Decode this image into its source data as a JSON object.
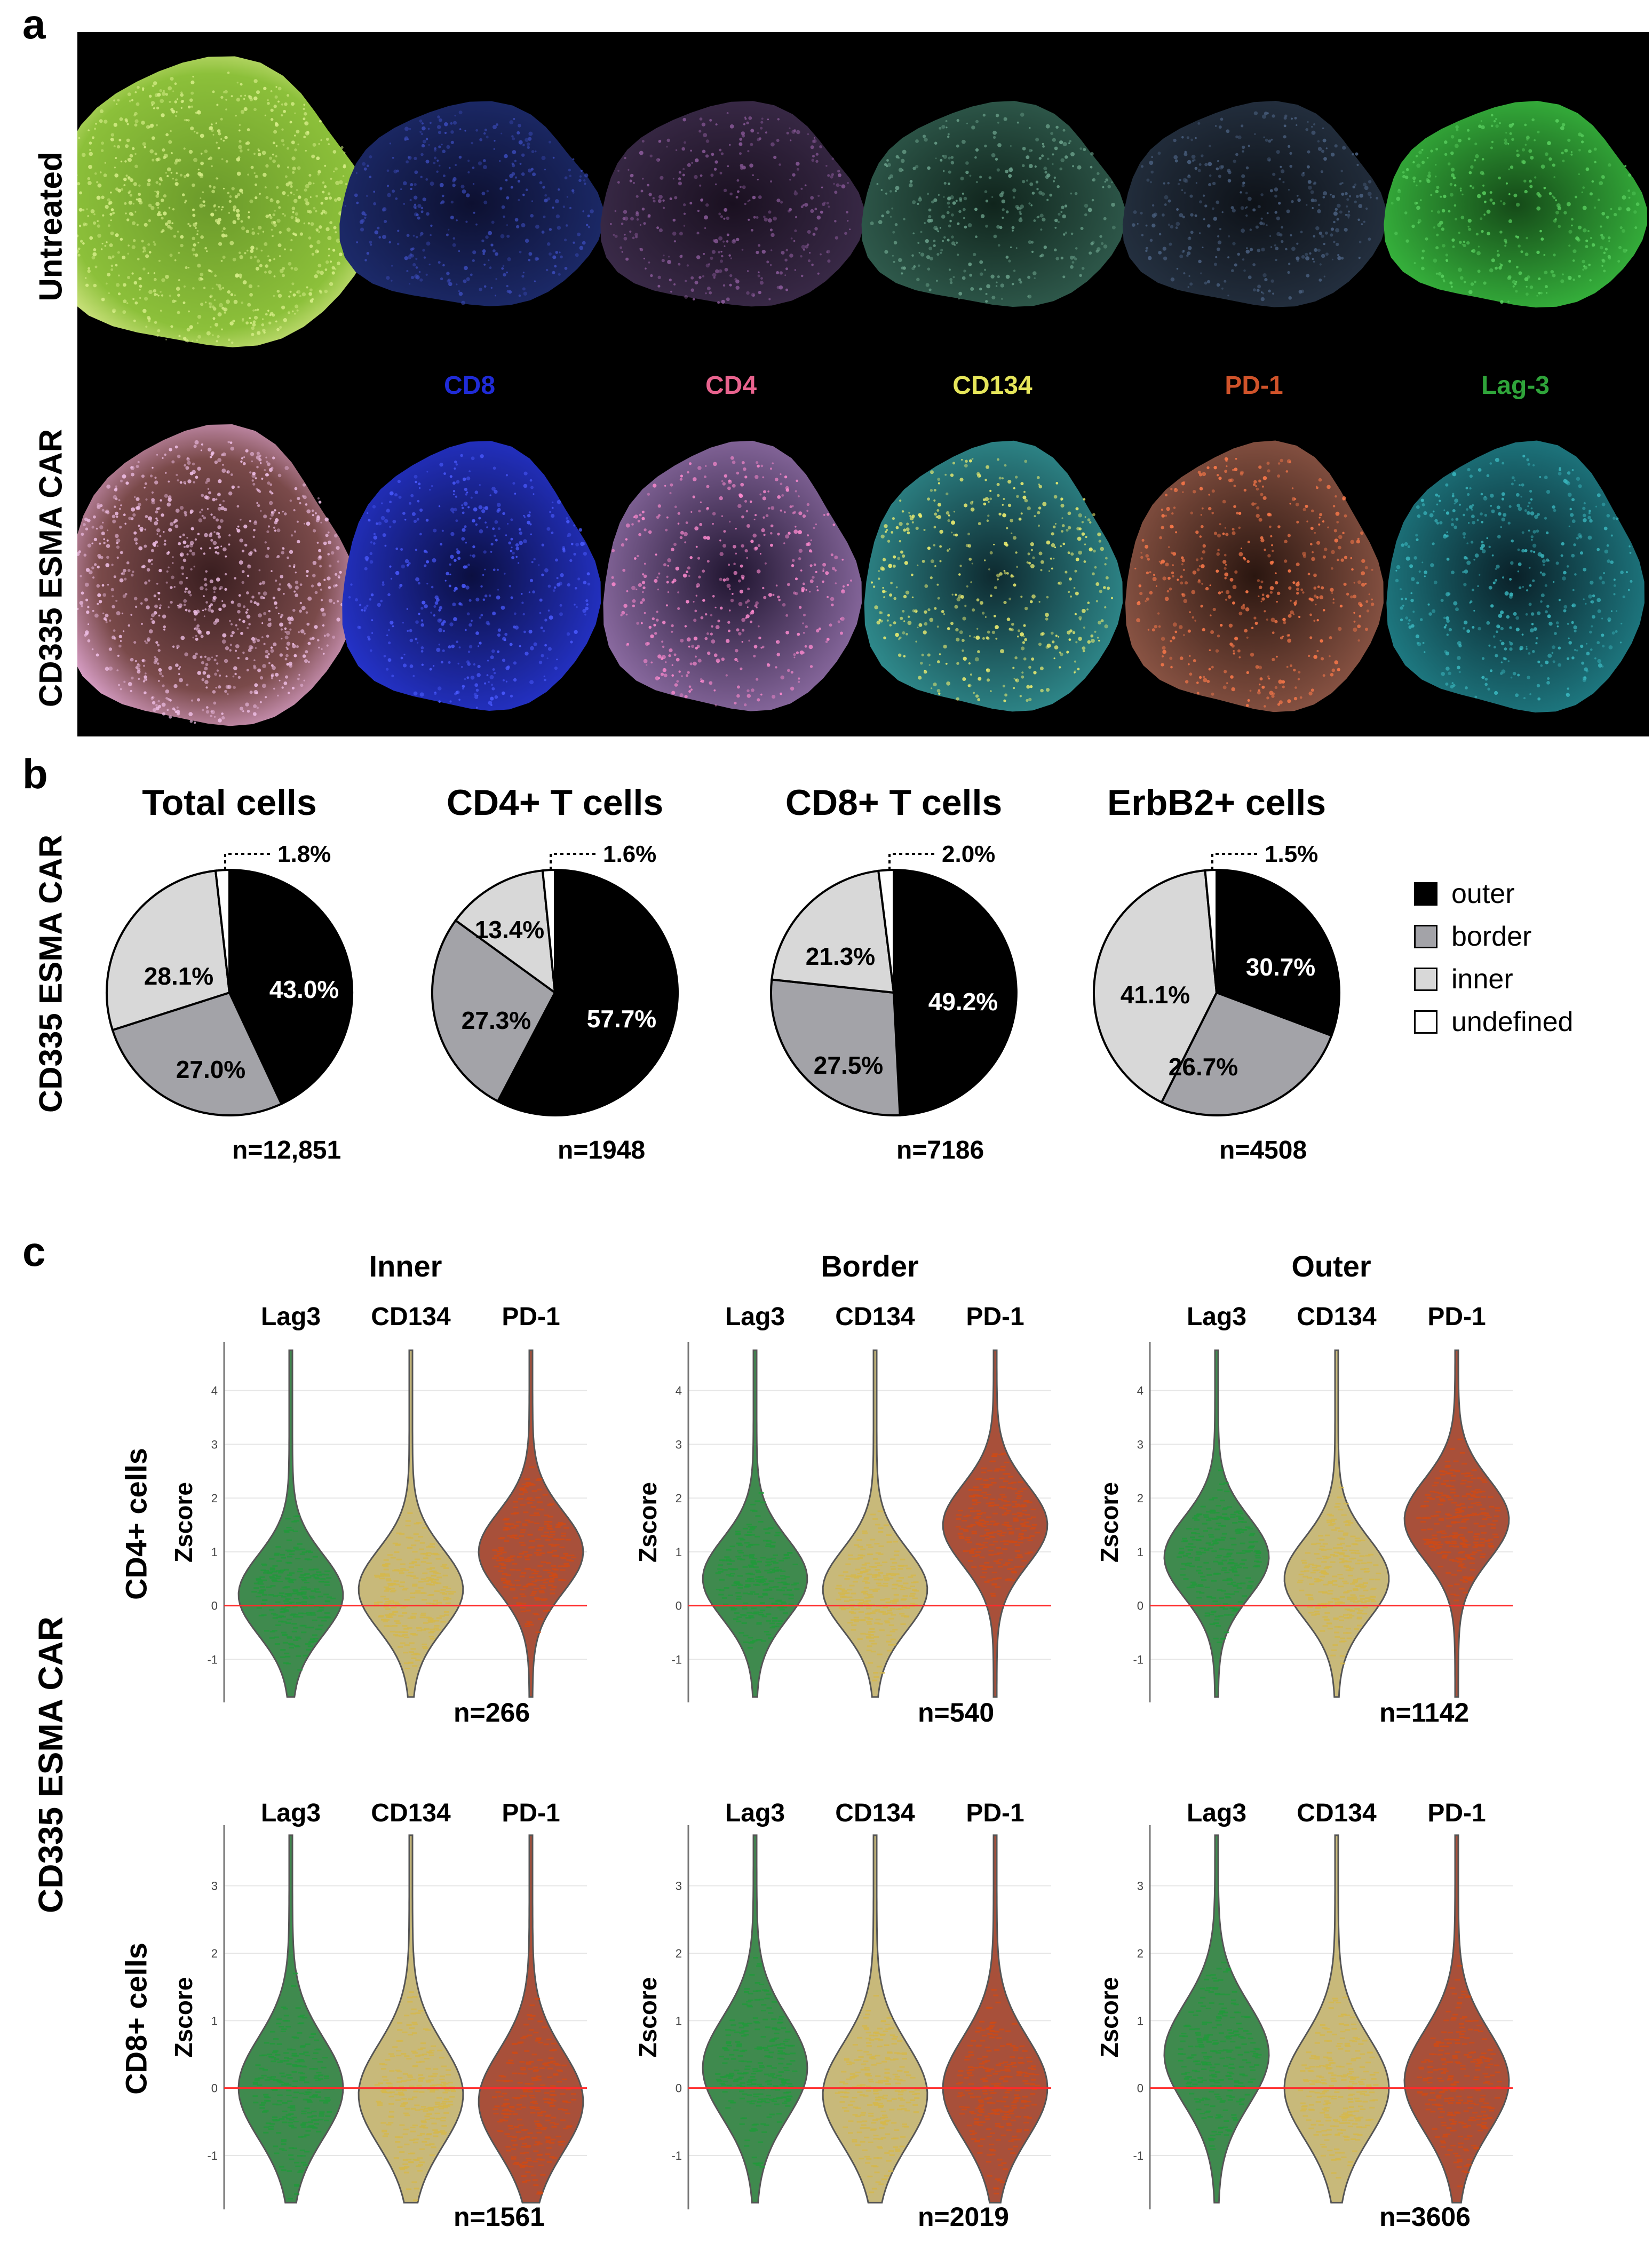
{
  "panels": {
    "a": "a",
    "b": "b",
    "c": "c"
  },
  "panel_a": {
    "row_labels": [
      "Untreated",
      "CD335 ESMA CAR"
    ],
    "markers": [
      {
        "label": "CD8",
        "color": "#1f2bd8"
      },
      {
        "label": "CD4",
        "color": "#e8638e"
      },
      {
        "label": "CD134",
        "color": "#e6e65a"
      },
      {
        "label": "PD-1",
        "color": "#d0532a"
      },
      {
        "label": "Lag-3",
        "color": "#2fa43a"
      }
    ]
  },
  "panel_b": {
    "side_label": "CD335 ESMA CAR",
    "legend": [
      {
        "label": "outer",
        "color": "#000000"
      },
      {
        "label": "border",
        "color": "#a3a3a8"
      },
      {
        "label": "inner",
        "color": "#d8d8d8"
      },
      {
        "label": "undefined",
        "color": "#ffffff"
      }
    ],
    "pies": [
      {
        "title": "Total cells",
        "n": "n=12,851",
        "labels": [
          "43.0%",
          "27.0%",
          "28.1%",
          "1.8%"
        ]
      },
      {
        "title": "CD4+ T cells",
        "n": "n=1948",
        "labels": [
          "57.7%",
          "27.3%",
          "13.4%",
          "1.6%"
        ]
      },
      {
        "title": "CD8+ T cells",
        "n": "n=7186",
        "labels": [
          "49.2%",
          "27.5%",
          "21.3%",
          "2.0%"
        ]
      },
      {
        "title": "ErbB2+ cells",
        "n": "n=4508",
        "labels": [
          "30.7%",
          "26.7%",
          "41.1%",
          "1.5%"
        ]
      }
    ]
  },
  "panel_c": {
    "side_label": "CD335 ESMA CAR",
    "regions": [
      "Inner",
      "Border",
      "Outer"
    ],
    "rows": [
      {
        "label": "CD4+ cells",
        "n": [
          "n=266",
          "n=540",
          "n=1142"
        ]
      },
      {
        "label": "CD8+ cells",
        "n": [
          "n=1561",
          "n=2019",
          "n=3606"
        ]
      }
    ],
    "markers": [
      "Lag3",
      "CD134",
      "PD-1"
    ],
    "ylabel": "Zscore",
    "row1_ticks": [
      "-1",
      "0",
      "1",
      "2",
      "3",
      "4"
    ],
    "row2_ticks": [
      "-1",
      "0",
      "1",
      "2",
      "3"
    ]
  },
  "chart_data": [
    {
      "type": "pie",
      "title": "Total cells",
      "categories": [
        "outer",
        "border",
        "inner",
        "undefined"
      ],
      "values": [
        43.0,
        27.0,
        28.1,
        1.8
      ],
      "n": 12851
    },
    {
      "type": "pie",
      "title": "CD4+ T cells",
      "categories": [
        "outer",
        "border",
        "inner",
        "undefined"
      ],
      "values": [
        57.7,
        27.3,
        13.4,
        1.6
      ],
      "n": 1948
    },
    {
      "type": "pie",
      "title": "CD8+ T cells",
      "categories": [
        "outer",
        "border",
        "inner",
        "undefined"
      ],
      "values": [
        49.2,
        27.5,
        21.3,
        2.0
      ],
      "n": 7186
    },
    {
      "type": "pie",
      "title": "ErbB2+ cells",
      "categories": [
        "outer",
        "border",
        "inner",
        "undefined"
      ],
      "values": [
        30.7,
        26.7,
        41.1,
        1.5
      ],
      "n": 4508
    },
    {
      "type": "violin",
      "title": "CD4+ cells",
      "ylabel": "Zscore",
      "ylim": [
        -1.8,
        4.9
      ],
      "regions": [
        "Inner",
        "Border",
        "Outer"
      ],
      "markers": [
        "Lag3",
        "CD134",
        "PD-1"
      ],
      "medians": [
        [
          0.2,
          0.3,
          1.0
        ],
        [
          0.5,
          0.3,
          1.5
        ],
        [
          0.9,
          0.5,
          1.6
        ]
      ],
      "n": [
        266,
        540,
        1142
      ]
    },
    {
      "type": "violin",
      "title": "CD8+ cells",
      "ylabel": "Zscore",
      "ylim": [
        -1.8,
        3.9
      ],
      "regions": [
        "Inner",
        "Border",
        "Outer"
      ],
      "markers": [
        "Lag3",
        "CD134",
        "PD-1"
      ],
      "medians": [
        [
          0.0,
          -0.1,
          -0.2
        ],
        [
          0.3,
          -0.1,
          0.0
        ],
        [
          0.5,
          0.0,
          0.1
        ]
      ],
      "n": [
        1561,
        2019,
        3606
      ]
    }
  ]
}
